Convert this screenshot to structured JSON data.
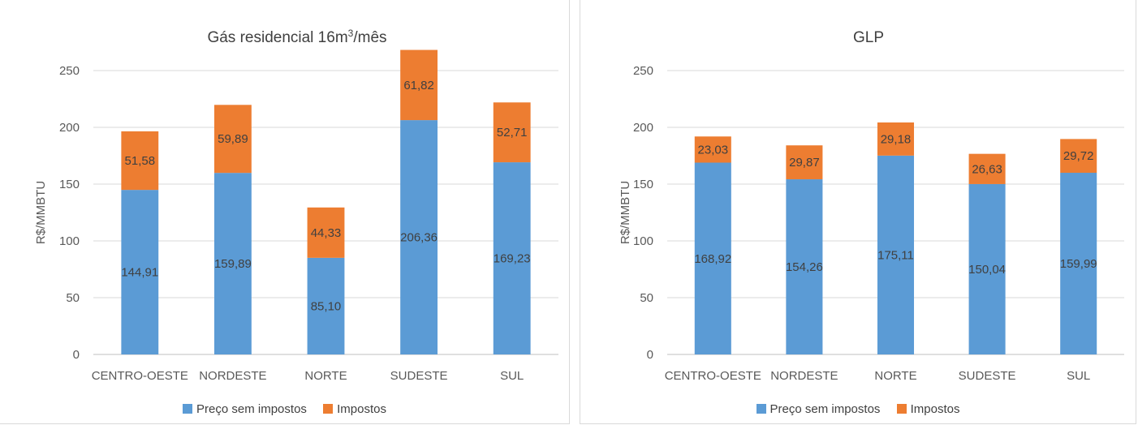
{
  "legend": {
    "series1": "Preço sem impostos",
    "series2": "Impostos"
  },
  "colors": {
    "series1": "#5b9bd5",
    "series2": "#ed7d31"
  },
  "chart_data": [
    {
      "type": "bar",
      "stacked": true,
      "title_main": "Gás residencial 16m",
      "title_sup": "3",
      "title_tail": "/mês",
      "ylabel": "R$/MMBTU",
      "xlabel": "",
      "ylim": [
        0,
        250
      ],
      "yticks": [
        "0",
        "50",
        "100",
        "150",
        "200",
        "250"
      ],
      "grid": true,
      "legend_position": "bottom",
      "categories": [
        "CENTRO-OESTE",
        "NORDESTE",
        "NORTE",
        "SUDESTE",
        "SUL"
      ],
      "series": [
        {
          "name": "Preço sem impostos",
          "values": [
            144.91,
            159.89,
            85.1,
            206.36,
            169.23
          ],
          "labels": [
            "144,91",
            "159,89",
            "85,10",
            "206,36",
            "169,23"
          ]
        },
        {
          "name": "Impostos",
          "values": [
            51.58,
            59.89,
            44.33,
            61.82,
            52.71
          ],
          "labels": [
            "51,58",
            "59,89",
            "44,33",
            "61,82",
            "52,71"
          ]
        }
      ]
    },
    {
      "type": "bar",
      "stacked": true,
      "title_main": "GLP",
      "title_sup": "",
      "title_tail": "",
      "ylabel": "R$/MMBTU",
      "xlabel": "",
      "ylim": [
        0,
        250
      ],
      "yticks": [
        "0",
        "50",
        "100",
        "150",
        "200",
        "250"
      ],
      "grid": true,
      "legend_position": "bottom",
      "categories": [
        "CENTRO-OESTE",
        "NORDESTE",
        "NORTE",
        "SUDESTE",
        "SUL"
      ],
      "series": [
        {
          "name": "Preço sem impostos",
          "values": [
            168.92,
            154.26,
            175.11,
            150.04,
            159.99
          ],
          "labels": [
            "168,92",
            "154,26",
            "175,11",
            "150,04",
            "159,99"
          ]
        },
        {
          "name": "Impostos",
          "values": [
            23.03,
            29.87,
            29.18,
            26.63,
            29.72
          ],
          "labels": [
            "23,03",
            "29,87",
            "29,18",
            "26,63",
            "29,72"
          ]
        }
      ]
    }
  ]
}
